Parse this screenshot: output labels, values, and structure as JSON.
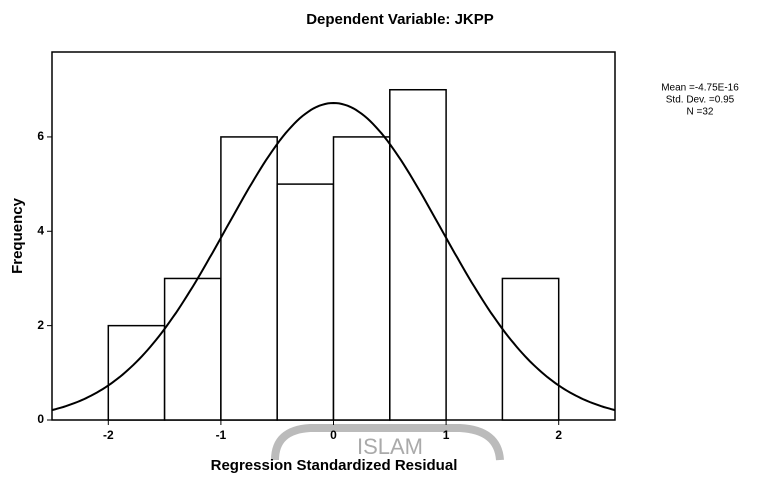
{
  "chart_data": {
    "type": "histogram",
    "title": "Dependent Variable: JKPP",
    "xlabel": "Regression Standardized Residual",
    "ylabel": "Frequency",
    "bins": [
      -2,
      -1.5,
      -1,
      -0.5,
      0,
      0.5,
      1,
      1.5,
      2
    ],
    "values": [
      2,
      3,
      6,
      5,
      6,
      7,
      0,
      3
    ],
    "color": "#ffffff",
    "xlim": [
      -2.5,
      2.5
    ],
    "ylim": [
      0,
      7.8
    ],
    "xticks": [
      -2,
      -1,
      0,
      1,
      2
    ],
    "yticks": [
      0,
      2,
      4,
      6
    ],
    "normal_curve": {
      "mean": {
        "value": -4.75e-16,
        "label": "Mean =-4.75E-16"
      },
      "sd": {
        "value": 0.95,
        "label": "Std. Dev. =0.95"
      },
      "n": {
        "value": 32,
        "label": "N =32"
      }
    },
    "watermark": "ISLAM"
  }
}
